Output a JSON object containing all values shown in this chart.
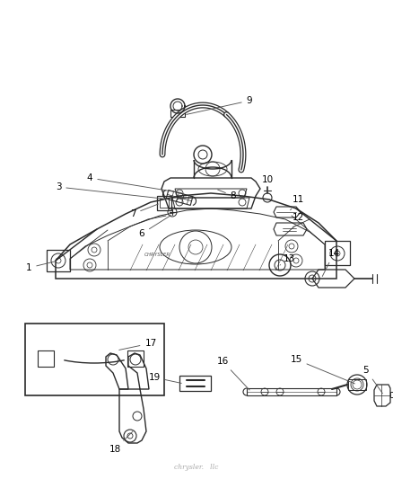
{
  "bg_color": "#ffffff",
  "line_color": "#2a2a2a",
  "label_color": "#000000",
  "label_fs": 7.5,
  "lw_main": 1.0,
  "lw_thin": 0.6,
  "lw_thick": 1.4,
  "watermark": "chrysler.   llc",
  "watermark_color": "#aaaaaa",
  "labels": [
    [
      1,
      0.072,
      0.558,
      0.115,
      0.572
    ],
    [
      3,
      0.148,
      0.638,
      0.193,
      0.63
    ],
    [
      4,
      0.228,
      0.648,
      0.228,
      0.636
    ],
    [
      5,
      0.88,
      0.438,
      0.838,
      0.448
    ],
    [
      6,
      0.358,
      0.596,
      0.395,
      0.592
    ],
    [
      7,
      0.335,
      0.66,
      0.348,
      0.653
    ],
    [
      8,
      0.558,
      0.65,
      0.518,
      0.64
    ],
    [
      9,
      0.598,
      0.778,
      0.48,
      0.735
    ],
    [
      10,
      0.672,
      0.668,
      0.64,
      0.66
    ],
    [
      11,
      0.718,
      0.648,
      0.688,
      0.638
    ],
    [
      12,
      0.718,
      0.63,
      0.688,
      0.622
    ],
    [
      13,
      0.678,
      0.548,
      0.645,
      0.555
    ],
    [
      14,
      0.79,
      0.54,
      0.755,
      0.548
    ],
    [
      15,
      0.688,
      0.398,
      0.718,
      0.42
    ],
    [
      16,
      0.528,
      0.402,
      0.575,
      0.416
    ],
    [
      17,
      0.338,
      0.385,
      0.285,
      0.388
    ],
    [
      18,
      0.258,
      0.278,
      0.228,
      0.308
    ],
    [
      19,
      0.348,
      0.308,
      0.318,
      0.32
    ]
  ]
}
